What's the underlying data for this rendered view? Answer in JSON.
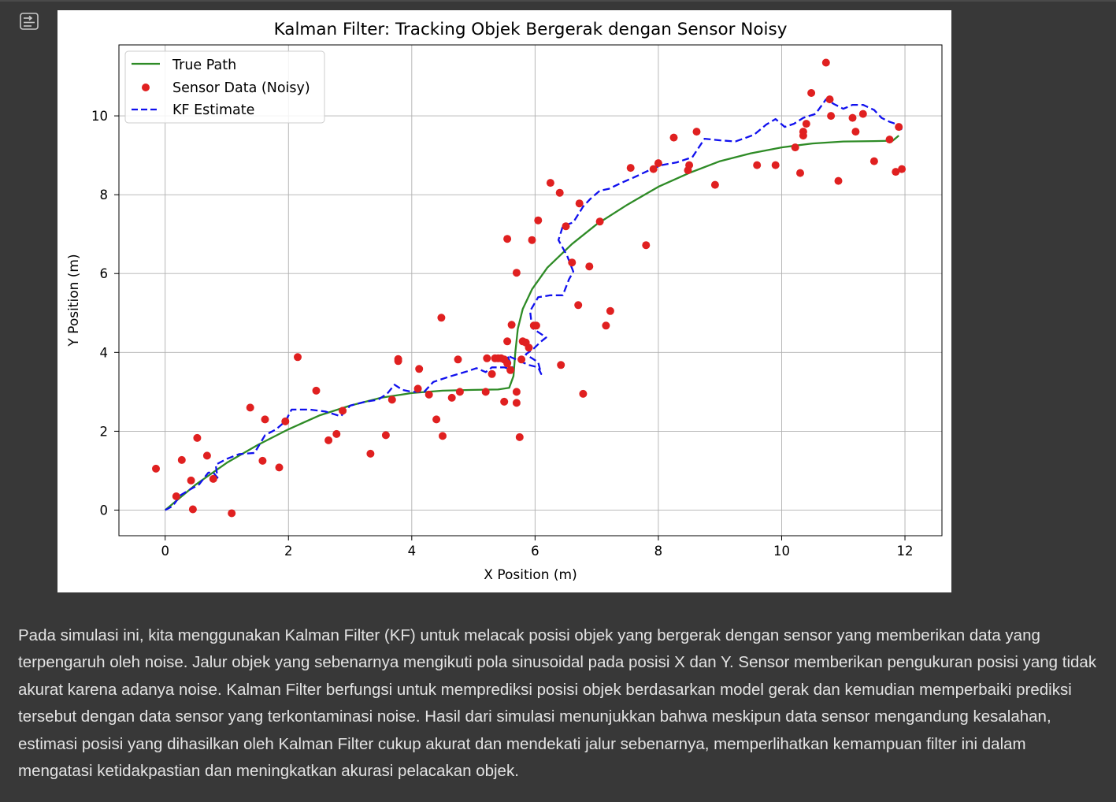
{
  "toolbar": {
    "output_icon": "output-collapse-icon"
  },
  "colors": {
    "page_bg": "#383838",
    "true_path": "#2e8b26",
    "sensor": "#e02020",
    "kf": "#1010ee",
    "text": "#e3e3e3"
  },
  "chart_data": {
    "type": "line",
    "title": "Kalman Filter: Tracking Objek Bergerak dengan Sensor Noisy",
    "xlabel": "X Position (m)",
    "ylabel": "Y Position (m)",
    "xlim": [
      -0.75,
      12.6
    ],
    "ylim": [
      -0.65,
      11.8
    ],
    "xticks": [
      0,
      2,
      4,
      6,
      8,
      10,
      12
    ],
    "yticks": [
      0,
      2,
      4,
      6,
      8,
      10
    ],
    "grid": true,
    "legend_position": "top-left",
    "series": [
      {
        "name": "True Path",
        "style": "solid-line",
        "color": "#2e8b26",
        "points": [
          [
            0,
            0
          ],
          [
            0.5,
            0.65
          ],
          [
            1,
            1.2
          ],
          [
            1.5,
            1.65
          ],
          [
            2,
            2.05
          ],
          [
            2.5,
            2.4
          ],
          [
            3,
            2.65
          ],
          [
            3.5,
            2.85
          ],
          [
            4,
            2.97
          ],
          [
            4.5,
            3.03
          ],
          [
            5,
            3.05
          ],
          [
            5.4,
            3.06
          ],
          [
            5.58,
            3.1
          ],
          [
            5.65,
            3.4
          ],
          [
            5.68,
            4.0
          ],
          [
            5.72,
            4.6
          ],
          [
            5.8,
            5.1
          ],
          [
            5.95,
            5.6
          ],
          [
            6.2,
            6.15
          ],
          [
            6.6,
            6.75
          ],
          [
            7,
            7.25
          ],
          [
            7.5,
            7.75
          ],
          [
            8,
            8.2
          ],
          [
            8.5,
            8.55
          ],
          [
            9,
            8.85
          ],
          [
            9.5,
            9.05
          ],
          [
            10,
            9.2
          ],
          [
            10.5,
            9.3
          ],
          [
            11,
            9.35
          ],
          [
            11.5,
            9.36
          ],
          [
            11.8,
            9.37
          ],
          [
            11.9,
            9.5
          ]
        ]
      },
      {
        "name": "Sensor Data (Noisy)",
        "style": "scatter",
        "color": "#e02020",
        "points": [
          [
            -0.15,
            1.05
          ],
          [
            0.18,
            0.35
          ],
          [
            0.27,
            1.27
          ],
          [
            0.42,
            0.75
          ],
          [
            0.45,
            0.02
          ],
          [
            0.52,
            1.83
          ],
          [
            0.68,
            1.38
          ],
          [
            0.78,
            0.79
          ],
          [
            1.08,
            -0.08
          ],
          [
            1.38,
            2.6
          ],
          [
            1.58,
            1.25
          ],
          [
            1.62,
            2.3
          ],
          [
            1.85,
            1.08
          ],
          [
            1.95,
            2.25
          ],
          [
            2.15,
            3.88
          ],
          [
            2.45,
            3.03
          ],
          [
            2.65,
            1.77
          ],
          [
            2.78,
            1.93
          ],
          [
            2.88,
            2.52
          ],
          [
            3.33,
            1.43
          ],
          [
            3.58,
            1.9
          ],
          [
            3.68,
            2.8
          ],
          [
            3.78,
            3.78
          ],
          [
            3.78,
            3.83
          ],
          [
            4.12,
            3.58
          ],
          [
            4.1,
            3.08
          ],
          [
            4.28,
            2.93
          ],
          [
            4.4,
            2.3
          ],
          [
            4.48,
            4.88
          ],
          [
            4.5,
            1.88
          ],
          [
            4.65,
            2.85
          ],
          [
            4.75,
            3.82
          ],
          [
            4.78,
            3.0
          ],
          [
            5.2,
            3.0
          ],
          [
            5.22,
            3.85
          ],
          [
            5.3,
            3.45
          ],
          [
            5.35,
            3.85
          ],
          [
            5.4,
            3.85
          ],
          [
            5.45,
            3.85
          ],
          [
            5.5,
            3.82
          ],
          [
            5.5,
            2.75
          ],
          [
            5.55,
            3.72
          ],
          [
            5.55,
            4.28
          ],
          [
            5.6,
            3.55
          ],
          [
            5.55,
            6.88
          ],
          [
            5.62,
            4.7
          ],
          [
            5.7,
            6.02
          ],
          [
            5.7,
            3.0
          ],
          [
            5.7,
            2.72
          ],
          [
            5.75,
            1.85
          ],
          [
            5.78,
            3.82
          ],
          [
            5.8,
            4.28
          ],
          [
            5.85,
            4.25
          ],
          [
            5.9,
            4.12
          ],
          [
            5.95,
            6.85
          ],
          [
            5.98,
            4.68
          ],
          [
            6.02,
            4.68
          ],
          [
            6.05,
            7.35
          ],
          [
            6.25,
            8.3
          ],
          [
            6.4,
            8.05
          ],
          [
            6.42,
            3.68
          ],
          [
            6.5,
            7.2
          ],
          [
            6.6,
            6.28
          ],
          [
            6.7,
            5.2
          ],
          [
            6.72,
            7.78
          ],
          [
            6.78,
            2.95
          ],
          [
            6.88,
            6.18
          ],
          [
            7.05,
            7.32
          ],
          [
            7.15,
            4.68
          ],
          [
            7.22,
            5.05
          ],
          [
            7.55,
            8.68
          ],
          [
            7.8,
            6.72
          ],
          [
            7.92,
            8.65
          ],
          [
            8.0,
            8.8
          ],
          [
            8.25,
            9.45
          ],
          [
            8.48,
            8.62
          ],
          [
            8.5,
            8.75
          ],
          [
            8.62,
            9.6
          ],
          [
            8.92,
            8.25
          ],
          [
            9.6,
            8.75
          ],
          [
            9.9,
            8.75
          ],
          [
            10.22,
            9.2
          ],
          [
            10.3,
            8.55
          ],
          [
            10.35,
            9.6
          ],
          [
            10.35,
            9.5
          ],
          [
            10.4,
            9.8
          ],
          [
            10.48,
            10.58
          ],
          [
            10.72,
            11.35
          ],
          [
            10.78,
            10.42
          ],
          [
            10.8,
            10.0
          ],
          [
            10.92,
            8.35
          ],
          [
            11.15,
            9.95
          ],
          [
            11.2,
            9.6
          ],
          [
            11.32,
            10.05
          ],
          [
            11.5,
            8.85
          ],
          [
            11.75,
            9.4
          ],
          [
            11.85,
            8.58
          ],
          [
            11.9,
            9.72
          ],
          [
            11.95,
            8.65
          ]
        ]
      },
      {
        "name": "KF Estimate",
        "style": "dashed-line",
        "color": "#1010ee",
        "points": [
          [
            0,
            0
          ],
          [
            0.12,
            0.1
          ],
          [
            0.25,
            0.38
          ],
          [
            0.4,
            0.52
          ],
          [
            0.55,
            0.65
          ],
          [
            0.7,
            0.95
          ],
          [
            0.78,
            0.95
          ],
          [
            0.85,
            0.82
          ],
          [
            0.82,
            1.15
          ],
          [
            1.0,
            1.3
          ],
          [
            1.2,
            1.42
          ],
          [
            1.45,
            1.45
          ],
          [
            1.62,
            1.9
          ],
          [
            1.8,
            2.05
          ],
          [
            1.95,
            2.25
          ],
          [
            2.05,
            2.55
          ],
          [
            2.35,
            2.55
          ],
          [
            2.6,
            2.5
          ],
          [
            2.85,
            2.38
          ],
          [
            3.0,
            2.65
          ],
          [
            3.25,
            2.75
          ],
          [
            3.45,
            2.8
          ],
          [
            3.6,
            2.95
          ],
          [
            3.72,
            3.18
          ],
          [
            3.85,
            3.05
          ],
          [
            4.0,
            3.0
          ],
          [
            4.2,
            3.0
          ],
          [
            4.35,
            3.25
          ],
          [
            4.6,
            3.38
          ],
          [
            4.9,
            3.52
          ],
          [
            5.05,
            3.6
          ],
          [
            5.2,
            3.5
          ],
          [
            5.3,
            3.62
          ],
          [
            5.5,
            3.62
          ],
          [
            5.65,
            3.55
          ],
          [
            5.55,
            3.92
          ],
          [
            5.75,
            3.78
          ],
          [
            5.9,
            3.68
          ],
          [
            6.05,
            3.62
          ],
          [
            6.1,
            3.45
          ],
          [
            6.05,
            3.75
          ],
          [
            5.85,
            3.95
          ],
          [
            5.98,
            4.1
          ],
          [
            6.1,
            4.28
          ],
          [
            6.18,
            4.38
          ],
          [
            5.95,
            4.62
          ],
          [
            5.92,
            5.05
          ],
          [
            6.05,
            5.4
          ],
          [
            6.25,
            5.45
          ],
          [
            6.45,
            5.45
          ],
          [
            6.55,
            5.85
          ],
          [
            6.62,
            6.05
          ],
          [
            6.52,
            6.45
          ],
          [
            6.38,
            6.85
          ],
          [
            6.45,
            7.2
          ],
          [
            6.62,
            7.3
          ],
          [
            6.78,
            7.7
          ],
          [
            6.9,
            7.9
          ],
          [
            7.05,
            8.1
          ],
          [
            7.2,
            8.15
          ],
          [
            7.4,
            8.3
          ],
          [
            7.62,
            8.45
          ],
          [
            7.85,
            8.62
          ],
          [
            8.05,
            8.75
          ],
          [
            8.3,
            8.82
          ],
          [
            8.55,
            8.95
          ],
          [
            8.75,
            9.42
          ],
          [
            9.0,
            9.38
          ],
          [
            9.25,
            9.35
          ],
          [
            9.55,
            9.52
          ],
          [
            9.75,
            9.78
          ],
          [
            9.9,
            9.92
          ],
          [
            10.05,
            9.72
          ],
          [
            10.2,
            9.8
          ],
          [
            10.35,
            9.95
          ],
          [
            10.55,
            10.05
          ],
          [
            10.72,
            10.42
          ],
          [
            10.85,
            10.3
          ],
          [
            11.0,
            10.18
          ],
          [
            11.15,
            10.28
          ],
          [
            11.32,
            10.28
          ],
          [
            11.5,
            10.15
          ],
          [
            11.62,
            9.95
          ],
          [
            11.75,
            9.85
          ],
          [
            11.88,
            9.78
          ],
          [
            11.95,
            9.65
          ]
        ]
      }
    ]
  },
  "description": "Pada simulasi ini, kita menggunakan Kalman Filter (KF) untuk melacak posisi objek yang bergerak dengan sensor yang memberikan data yang terpengaruh oleh noise. Jalur objek yang sebenarnya mengikuti pola sinusoidal pada posisi X dan Y. Sensor memberikan pengukuran posisi yang tidak akurat karena adanya noise. Kalman Filter berfungsi untuk memprediksi posisi objek berdasarkan model gerak dan kemudian memperbaiki prediksi tersebut dengan data sensor yang terkontaminasi noise. Hasil dari simulasi menunjukkan bahwa meskipun data sensor mengandung kesalahan, estimasi posisi yang dihasilkan oleh Kalman Filter cukup akurat dan mendekati jalur sebenarnya, memperlihatkan kemampuan filter ini dalam mengatasi ketidakpastian dan meningkatkan akurasi pelacakan objek."
}
